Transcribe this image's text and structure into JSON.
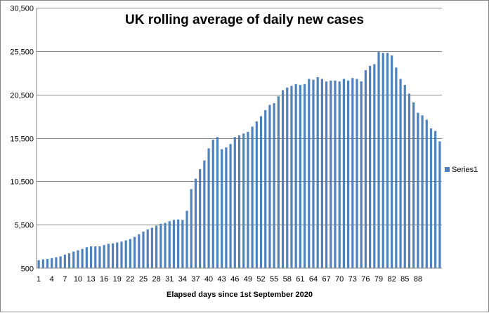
{
  "chart_data": {
    "type": "bar",
    "title": "UK rolling average of  daily new cases",
    "xlabel": "Elapsed days since 1st September 2020",
    "ylabel": "",
    "ylim": [
      500,
      30500
    ],
    "yticks": [
      "500",
      "5,500",
      "10,500",
      "15,500",
      "20,500",
      "25,500",
      "30,500"
    ],
    "ytick_values": [
      500,
      5500,
      10500,
      15500,
      20500,
      25500,
      30500
    ],
    "xtick_labels": [
      "1",
      "4",
      "7",
      "10",
      "13",
      "16",
      "19",
      "22",
      "25",
      "28",
      "31",
      "34",
      "37",
      "40",
      "43",
      "46",
      "49",
      "52",
      "55",
      "58",
      "61",
      "64",
      "67",
      "70",
      "73",
      "76",
      "79",
      "82",
      "85",
      "88"
    ],
    "grid": true,
    "legend": "right",
    "bar_color": "#4f81bd",
    "series": [
      {
        "name": "Series1",
        "values": [
          1400,
          1500,
          1550,
          1650,
          1750,
          1850,
          2050,
          2200,
          2400,
          2550,
          2700,
          2900,
          3000,
          3000,
          3000,
          3150,
          3300,
          3350,
          3450,
          3550,
          3700,
          3850,
          4100,
          4400,
          4700,
          4950,
          5150,
          5400,
          5600,
          5700,
          5900,
          6050,
          6100,
          6050,
          7100,
          9600,
          10800,
          11900,
          12900,
          14300,
          15300,
          15600,
          14200,
          14400,
          14800,
          15600,
          15800,
          16000,
          16200,
          16800,
          17400,
          18000,
          18700,
          19300,
          19500,
          20300,
          21000,
          21300,
          21500,
          21700,
          21600,
          21700,
          22300,
          22200,
          22500,
          22300,
          22000,
          22100,
          22100,
          22000,
          22300,
          22100,
          22400,
          22300,
          22000,
          23300,
          23800,
          24000,
          25400,
          25300,
          25300,
          25000,
          23600,
          22300,
          21600,
          20600,
          19600,
          18400,
          18100,
          17600,
          16600,
          16300,
          15100
        ]
      }
    ]
  }
}
